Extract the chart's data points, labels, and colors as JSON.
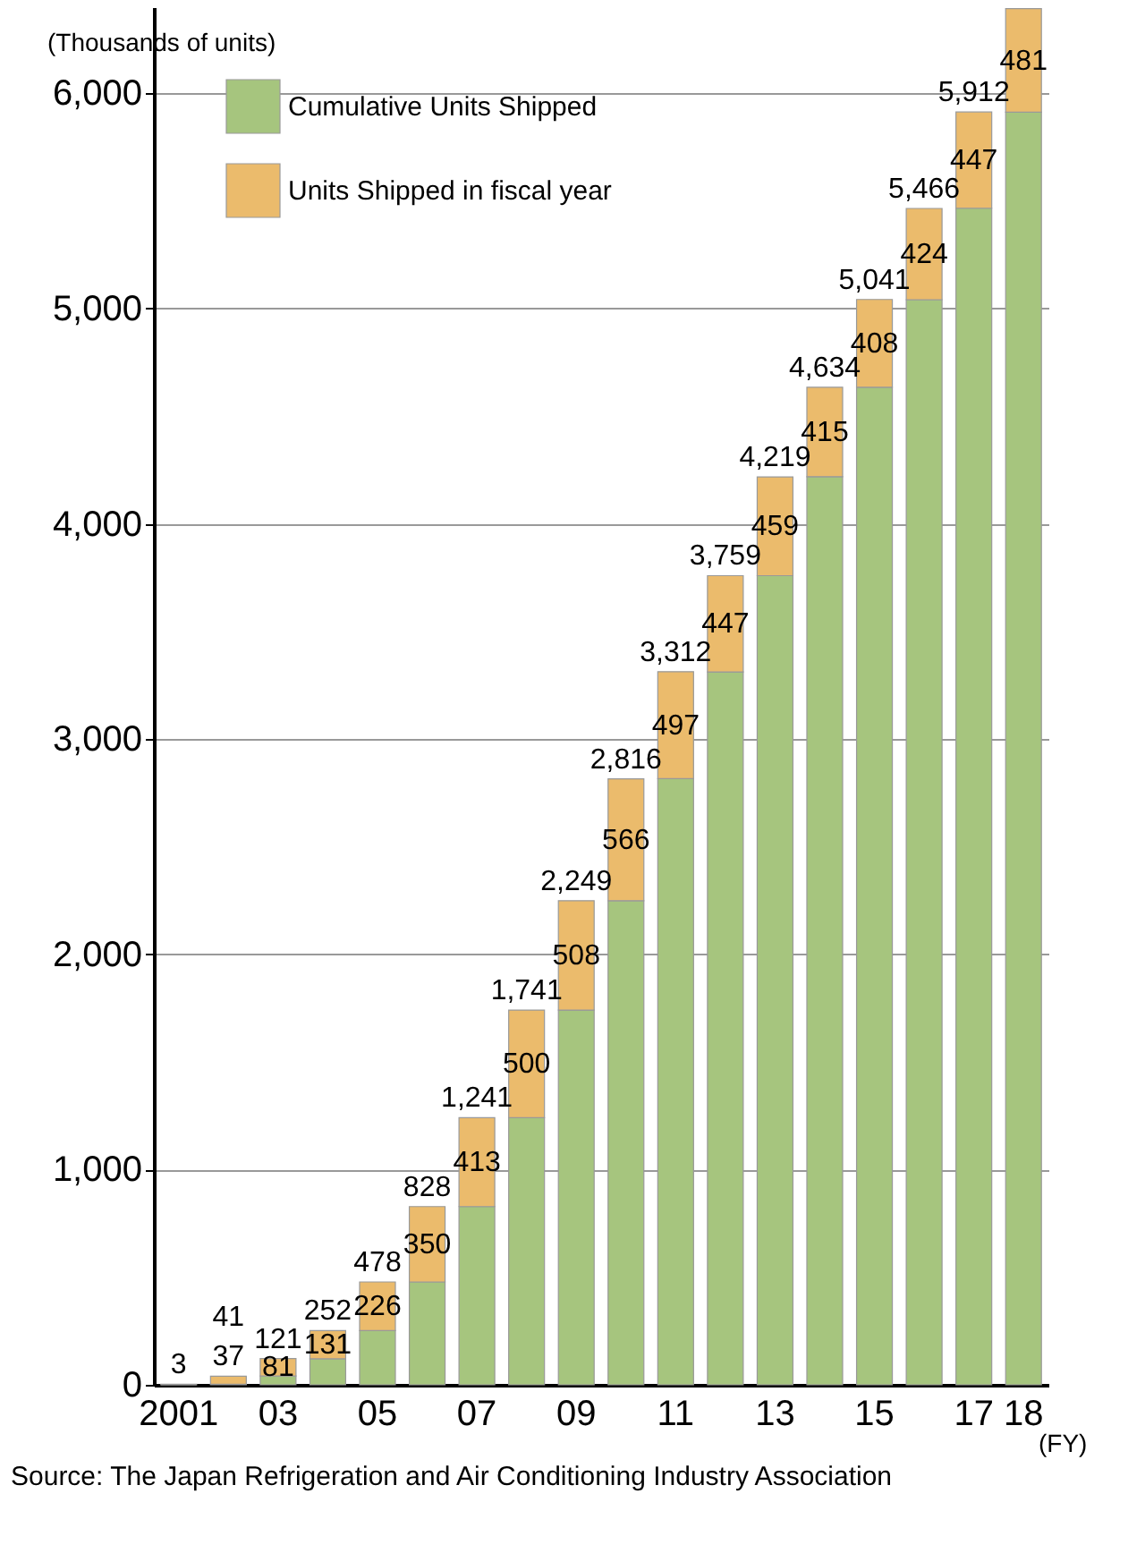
{
  "chart_data": {
    "type": "bar",
    "stacked": true,
    "ylabel": "(Thousands of units)",
    "xlabel": "(FY)",
    "categories": [
      "2001",
      null,
      "03",
      null,
      "05",
      null,
      "07",
      null,
      "09",
      null,
      "11",
      null,
      "13",
      null,
      "15",
      null,
      "17",
      "18"
    ],
    "series": [
      {
        "name": "Cumulative Units Shipped",
        "color": "#a6c57e",
        "values": [
          0,
          3,
          41,
          121,
          252,
          478,
          828,
          1241,
          1741,
          2249,
          2816,
          3312,
          3759,
          4219,
          4634,
          5041,
          5466,
          5912
        ]
      },
      {
        "name": "Units Shipped in fiscal year",
        "color": "#ebbb6c",
        "values": [
          3,
          37,
          81,
          131,
          226,
          350,
          413,
          500,
          508,
          566,
          497,
          447,
          459,
          415,
          408,
          424,
          447,
          481
        ],
        "value_labels": [
          null,
          "37",
          "81",
          "131",
          "226",
          "350",
          "413",
          "500",
          "508",
          "566",
          "497",
          "447",
          "459",
          "415",
          "408",
          "424",
          "447",
          "481"
        ]
      }
    ],
    "totals": [
      "3",
      "41",
      "121",
      "252",
      "478",
      "828",
      "1,241",
      "1,741",
      "2,249",
      "2,816",
      "3,312",
      "3,759",
      "4,219",
      "4,634",
      "5,041",
      "5,466",
      "5,912",
      null
    ],
    "ylim": [
      0,
      6400
    ],
    "yticks": [
      {
        "value": 0,
        "label": "0"
      },
      {
        "value": 1000,
        "label": "1,000"
      },
      {
        "value": 2000,
        "label": "2,000"
      },
      {
        "value": 3000,
        "label": "3,000"
      },
      {
        "value": 4000,
        "label": "4,000"
      },
      {
        "value": 5000,
        "label": "5,000"
      },
      {
        "value": 6000,
        "label": "6,000"
      }
    ],
    "grid": "y",
    "legend": "top left",
    "annotations": [
      "Source: The Japan Refrigeration and Air Conditioning Industry Association"
    ]
  }
}
